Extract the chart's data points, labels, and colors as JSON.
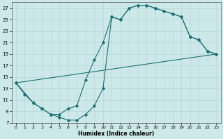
{
  "xlabel": "Humidex (Indice chaleur)",
  "bg_color": "#cce8e8",
  "line_color": "#1f7070",
  "grid_color": "#b8d8d8",
  "xlim": [
    -0.5,
    23.5
  ],
  "ylim": [
    7,
    28
  ],
  "xticks": [
    0,
    1,
    2,
    3,
    4,
    5,
    6,
    7,
    8,
    9,
    10,
    11,
    12,
    13,
    14,
    15,
    16,
    17,
    18,
    19,
    20,
    21,
    22,
    23
  ],
  "yticks": [
    7,
    9,
    11,
    13,
    15,
    17,
    19,
    21,
    23,
    25,
    27
  ],
  "line1_x": [
    0,
    1,
    2,
    3,
    4,
    5,
    6,
    7,
    8,
    9,
    10,
    11,
    12,
    13,
    14,
    15,
    16,
    17,
    18,
    19,
    20,
    21,
    22,
    23
  ],
  "line1_y": [
    14,
    12,
    10.5,
    9.5,
    8.5,
    8.5,
    9.5,
    10,
    14.5,
    18,
    21,
    25.5,
    25,
    27,
    27.5,
    27.5,
    27,
    26.5,
    26,
    25.5,
    22,
    21.5,
    19.5,
    19
  ],
  "line2_x": [
    0,
    23
  ],
  "line2_y": [
    14,
    19
  ],
  "line3_x": [
    0,
    2,
    3,
    4,
    5,
    6,
    7,
    8,
    9,
    10,
    11,
    12,
    13,
    14,
    15,
    16,
    17,
    18,
    19,
    20,
    21,
    22,
    23
  ],
  "line3_y": [
    14,
    10.5,
    9.5,
    8.5,
    8,
    7.5,
    7.5,
    8.5,
    10,
    13,
    25.5,
    25,
    27,
    27.5,
    27.5,
    27,
    26.5,
    26,
    25.5,
    22,
    21.5,
    19.5,
    19
  ]
}
